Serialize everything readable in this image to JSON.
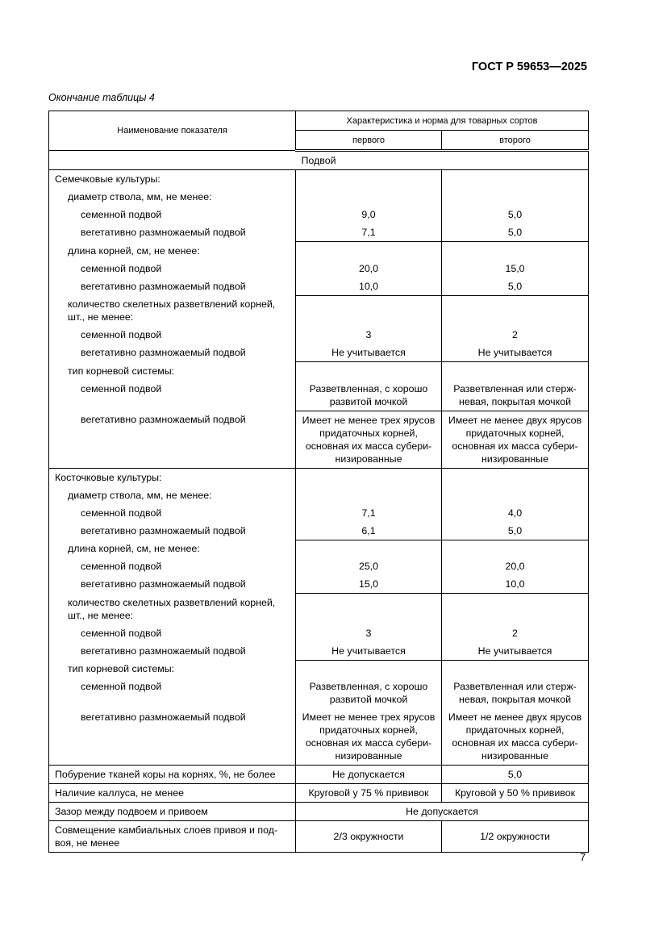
{
  "header": {
    "doc_id": "ГОСТ Р 59653—2025",
    "caption": "Окончание таблицы 4"
  },
  "table": {
    "col_name": "Наименование показателя",
    "col_group": "Характеристика и норма для товарных сортов",
    "col_first": "первого",
    "col_second": "второго",
    "section_title": "Подвой",
    "sections": [
      {
        "rows": [
          {
            "label": "Семечковые культуры:",
            "level": 1,
            "v1": "",
            "v2": ""
          },
          {
            "label": "диаметр ствола, мм, не менее:",
            "level": 2,
            "v1": "",
            "v2": ""
          },
          {
            "label": "семенной подвой",
            "level": 3,
            "v1": "9,0",
            "v2": "5,0"
          },
          {
            "label": "вегетативно размножаемый подвой",
            "level": 3,
            "v1": "7,1",
            "v2": "5,0",
            "end": true
          },
          {
            "label": "длина корней, см, не менее:",
            "level": 2,
            "v1": "",
            "v2": ""
          },
          {
            "label": "семенной подвой",
            "level": 3,
            "v1": "20,0",
            "v2": "15,0"
          },
          {
            "label": "вегетативно размножаемый подвой",
            "level": 3,
            "v1": "10,0",
            "v2": "5,0",
            "end": true
          },
          {
            "label": "количество скелетных разветвлений корней, шт., не менее:",
            "level": 2,
            "v1": "",
            "v2": ""
          },
          {
            "label": "семенной подвой",
            "level": 3,
            "v1": "3",
            "v2": "2"
          },
          {
            "label": "вегетативно размножаемый подвой",
            "level": 3,
            "v1": "Не учитывается",
            "v2": "Не учитывается",
            "end": true
          },
          {
            "label": "тип корневой системы:",
            "level": 2,
            "v1": "",
            "v2": ""
          },
          {
            "label": "семенной подвой",
            "level": 3,
            "v1": "Разветвленная, с хорошо развитой мочкой",
            "v2": "Разветвленная или стерж-невая, покрытая мочкой",
            "end": true
          },
          {
            "label": "вегетативно размножаемый подвой",
            "level": 3,
            "v1": "Имеет не менее трех ярусов придаточных корней, основная их масса субери-низированные",
            "v2": "Имеет не менее двух ярусов придаточных корней, основная их масса субери-низированные",
            "end": true
          }
        ]
      },
      {
        "rows": [
          {
            "label": "Косточковые культуры:",
            "level": 1,
            "v1": "",
            "v2": ""
          },
          {
            "label": "диаметр ствола, мм, не менее:",
            "level": 2,
            "v1": "",
            "v2": ""
          },
          {
            "label": "семенной подвой",
            "level": 3,
            "v1": "7,1",
            "v2": "4,0"
          },
          {
            "label": "вегетативно размножаемый подвой",
            "level": 3,
            "v1": "6,1",
            "v2": "5,0",
            "end": true
          },
          {
            "label": "длина корней, см, не менее:",
            "level": 2,
            "v1": "",
            "v2": ""
          },
          {
            "label": "семенной подвой",
            "level": 3,
            "v1": "25,0",
            "v2": "20,0"
          },
          {
            "label": "вегетативно размножаемый подвой",
            "level": 3,
            "v1": "15,0",
            "v2": "10,0",
            "end": true
          },
          {
            "label": "количество скелетных разветвлений корней, шт., не менее:",
            "level": 2,
            "v1": "",
            "v2": ""
          },
          {
            "label": "семенной подвой",
            "level": 3,
            "v1": "3",
            "v2": "2"
          },
          {
            "label": "вегетативно размножаемый подвой",
            "level": 3,
            "v1": "Не учитывается",
            "v2": "Не учитывается",
            "end": true
          },
          {
            "label": "тип корневой системы:",
            "level": 2,
            "v1": "",
            "v2": ""
          },
          {
            "label": "семенной подвой",
            "level": 3,
            "v1": "Разветвленная, с хорошо развитой мочкой",
            "v2": "Разветвленная или стерж-невая, покрытая мочкой"
          },
          {
            "label": "вегетативно размножаемый подвой",
            "level": 3,
            "v1": "Имеет не менее трех ярусов придаточных корней, основная их масса субери-низированные",
            "v2": "Имеет не менее двух ярусов придаточных корней, основная их масса субери-низированные",
            "end": true
          }
        ]
      }
    ],
    "tail_rows": [
      {
        "label": "Побурение тканей коры на корнях, %, не более",
        "v1": "Не допускается",
        "v2": "5,0"
      },
      {
        "label": "Наличие каллуса, не менее",
        "v1": "Круговой у 75 % прививок",
        "v2": "Круговой у 50 % прививок"
      },
      {
        "label": "Зазор между подвоем и привоем",
        "merged": "Не допускается"
      },
      {
        "label": "Совмещение камбиальных слоев привоя и под-воя, не менее",
        "v1": "2/3 окружности",
        "v2": "1/2 окружности"
      }
    ]
  },
  "footer": {
    "page_number": "7"
  }
}
